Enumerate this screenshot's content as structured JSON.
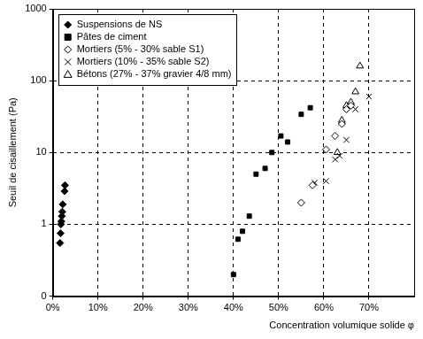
{
  "chart_data": {
    "type": "scatter",
    "x_label": "Concentration volumique solide φ",
    "y_label": "Seuil de cisaillement (Pa)",
    "log": "y",
    "grid": true,
    "legend": "top-left",
    "xlim": [
      0,
      80
    ],
    "xticks": [
      {
        "value": 0,
        "label": "0%"
      },
      {
        "value": 10,
        "label": "10%"
      },
      {
        "value": 20,
        "label": "20%"
      },
      {
        "value": 30,
        "label": "30%"
      },
      {
        "value": 40,
        "label": "40%"
      },
      {
        "value": 50,
        "label": "50%"
      },
      {
        "value": 60,
        "label": "60%"
      },
      {
        "value": 70,
        "label": "70%"
      }
    ],
    "ylim": [
      0.1,
      1000
    ],
    "yticks": [
      {
        "value": 0.1,
        "label": "0"
      },
      1,
      10,
      100,
      1000
    ],
    "series": [
      {
        "name": "Suspensions de NS",
        "color": "#000000",
        "marker": "diamond",
        "x": [
          1.6,
          1.7,
          1.8,
          1.9,
          2.0,
          2.1,
          2.2,
          2.6,
          2.7
        ],
        "values": [
          0.55,
          0.75,
          1.0,
          1.1,
          1.3,
          1.5,
          1.9,
          2.9,
          3.5
        ]
      },
      {
        "name": "Pâtes de ciment",
        "color": "#000000",
        "marker": "square",
        "x": [
          40,
          41,
          42,
          43.5,
          45,
          47,
          48.5,
          50.5,
          52,
          55,
          57
        ],
        "values": [
          0.2,
          0.62,
          0.8,
          1.3,
          5,
          6,
          10,
          17,
          14,
          34,
          42
        ]
      },
      {
        "name": "Mortiers (5% - 30% sable S1)",
        "color": "#000000",
        "marker": "open_diamond",
        "x": [
          55,
          57.5,
          60.5,
          62.5,
          64,
          65,
          66
        ],
        "values": [
          2,
          3.5,
          11,
          17,
          25,
          40,
          45
        ]
      },
      {
        "name": "Mortiers (10% - 35% sable S2)",
        "color": "#000000",
        "marker": "x",
        "x": [
          58,
          60.5,
          62.5,
          63.5,
          65,
          67,
          70
        ],
        "values": [
          3.8,
          4,
          8,
          9,
          15,
          40,
          60
        ]
      },
      {
        "name": "Bétons (27% - 37% gravier 4/8 mm)",
        "color": "#000000",
        "marker": "open_triangle",
        "x": [
          63,
          64,
          65,
          66,
          67,
          68
        ],
        "values": [
          10,
          28,
          45,
          50,
          70,
          160
        ]
      }
    ]
  }
}
